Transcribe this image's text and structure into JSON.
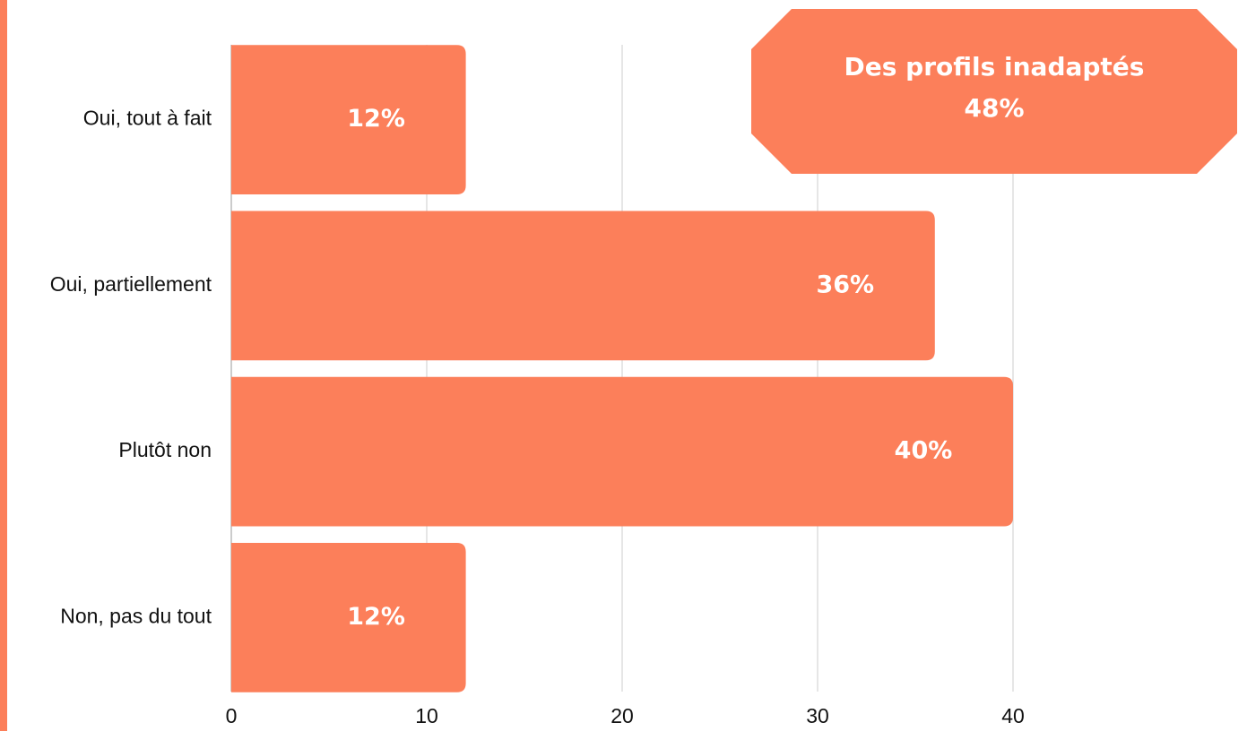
{
  "chart_data": {
    "type": "bar",
    "orientation": "horizontal",
    "categories": [
      "Oui, tout à fait",
      "Oui, partiellement",
      "Plutôt non",
      "Non, pas du tout"
    ],
    "values": [
      12,
      36,
      40,
      12
    ],
    "value_labels": [
      "12%",
      "36%",
      "40%",
      "12%"
    ],
    "color": "#fc7f5a",
    "xlim": [
      0,
      50
    ],
    "xticks": [
      0,
      10,
      20,
      30,
      40
    ],
    "grid": true,
    "annotation": {
      "title": "Des profils inadaptés",
      "text": "48%"
    }
  }
}
